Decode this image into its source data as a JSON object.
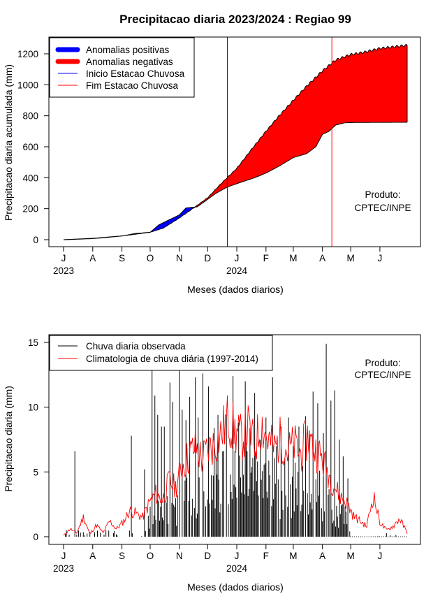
{
  "title": "Precipitacao diaria 2023/2024 : Regiao 99",
  "months": [
    "J",
    "A",
    "S",
    "O",
    "N",
    "D",
    "J",
    "F",
    "M",
    "A",
    "M",
    "J"
  ],
  "years": [
    "2023",
    "2024"
  ],
  "credit": [
    "Produto:",
    "CPTEC/INPE"
  ],
  "top": {
    "ylabel": "Precipitacao diaria acumulada (mm)",
    "xlabel": "Meses (dados diarios)",
    "legend": [
      "Anomalias positivas",
      "Anomalias negativas",
      "Inicio Estacao Chuvosa",
      "Fim Estacao Chuvosa"
    ],
    "yticks": [
      "0",
      "200",
      "400",
      "600",
      "800",
      "1000",
      "1200"
    ]
  },
  "bottom": {
    "ylabel": "Precipitacao diaria (mm)",
    "xlabel": "Meses (dados diarios)",
    "legend": [
      "Chuva diaria observada",
      "Climatologia de chuva diária (1997-2014)"
    ],
    "yticks": [
      "0",
      "5",
      "10",
      "15"
    ]
  },
  "colors": {
    "positive_anomaly": "#0000ff",
    "negative_anomaly": "#ff0000",
    "season_start": "#0000ff",
    "season_end": "#ff0000",
    "observed": "#000000",
    "climatology": "#ff0000"
  },
  "chart_data": [
    {
      "type": "area",
      "title": "Precipitacao diaria 2023/2024 : Regiao 99",
      "xlabel": "Meses (dados diarios)",
      "ylabel": "Precipitacao diaria acumulada (mm)",
      "x_start": "2023-07-01",
      "x_end": "2024-06-30",
      "ylim": [
        0,
        1250
      ],
      "season_start": "2023-12-22",
      "season_end": "2024-04-11",
      "observed_accumulated": [
        [
          "2023-07-01",
          0
        ],
        [
          "2023-07-15",
          3
        ],
        [
          "2023-08-01",
          7
        ],
        [
          "2023-08-15",
          14
        ],
        [
          "2023-09-01",
          24
        ],
        [
          "2023-09-15",
          40
        ],
        [
          "2023-10-01",
          48
        ],
        [
          "2023-10-10",
          95
        ],
        [
          "2023-10-20",
          125
        ],
        [
          "2023-11-01",
          160
        ],
        [
          "2023-11-08",
          205
        ],
        [
          "2023-11-20",
          212
        ],
        [
          "2023-12-01",
          260
        ],
        [
          "2023-12-10",
          300
        ],
        [
          "2023-12-22",
          340
        ],
        [
          "2024-01-05",
          370
        ],
        [
          "2024-01-20",
          400
        ],
        [
          "2024-02-01",
          430
        ],
        [
          "2024-02-15",
          475
        ],
        [
          "2024-03-01",
          530
        ],
        [
          "2024-03-15",
          555
        ],
        [
          "2024-03-25",
          600
        ],
        [
          "2024-04-01",
          680
        ],
        [
          "2024-04-08",
          700
        ],
        [
          "2024-04-15",
          740
        ],
        [
          "2024-04-25",
          755
        ],
        [
          "2024-05-10",
          757
        ],
        [
          "2024-06-30",
          758
        ]
      ],
      "climatology_accumulated": [
        [
          "2023-07-01",
          0
        ],
        [
          "2023-07-15",
          4
        ],
        [
          "2023-08-01",
          9
        ],
        [
          "2023-08-15",
          16
        ],
        [
          "2023-09-01",
          24
        ],
        [
          "2023-09-15",
          35
        ],
        [
          "2023-10-01",
          48
        ],
        [
          "2023-10-15",
          75
        ],
        [
          "2023-11-01",
          140
        ],
        [
          "2023-11-15",
          200
        ],
        [
          "2023-12-01",
          270
        ],
        [
          "2023-12-15",
          360
        ],
        [
          "2024-01-01",
          460
        ],
        [
          "2024-01-15",
          570
        ],
        [
          "2024-02-01",
          700
        ],
        [
          "2024-02-15",
          800
        ],
        [
          "2024-03-01",
          900
        ],
        [
          "2024-03-15",
          990
        ],
        [
          "2024-04-01",
          1090
        ],
        [
          "2024-04-15",
          1160
        ],
        [
          "2024-05-01",
          1195
        ],
        [
          "2024-05-15",
          1210
        ],
        [
          "2024-06-01",
          1235
        ],
        [
          "2024-06-30",
          1255
        ]
      ],
      "series": [
        {
          "name": "Anomalias positivas",
          "color": "#0000ff"
        },
        {
          "name": "Anomalias negativas",
          "color": "#ff0000"
        },
        {
          "name": "Inicio Estacao Chuvosa",
          "color": "#0000ff"
        },
        {
          "name": "Fim Estacao Chuvosa",
          "color": "#ff0000"
        }
      ]
    },
    {
      "type": "bar",
      "title": "",
      "xlabel": "Meses (dados diarios)",
      "ylabel": "Precipitacao diaria (mm)",
      "x_start": "2023-07-01",
      "x_end": "2024-06-30",
      "ylim": [
        0,
        15.5
      ],
      "observed_daily_peaks": [
        [
          "2023-07-13",
          6.6
        ],
        [
          "2023-09-11",
          7.8
        ],
        [
          "2023-09-25",
          5.2
        ],
        [
          "2023-10-03",
          12.9
        ],
        [
          "2023-10-06",
          10.9
        ],
        [
          "2023-10-09",
          9.4
        ],
        [
          "2023-10-13",
          8.5
        ],
        [
          "2023-10-16",
          8.5
        ],
        [
          "2023-10-22",
          11.9
        ],
        [
          "2023-10-25",
          10.4
        ],
        [
          "2023-11-01",
          12.8
        ],
        [
          "2023-11-04",
          9.8
        ],
        [
          "2023-11-08",
          9.0
        ],
        [
          "2023-11-12",
          10.8
        ],
        [
          "2023-11-18",
          12.3
        ],
        [
          "2023-11-21",
          9.2
        ],
        [
          "2023-11-26",
          12.6
        ],
        [
          "2023-12-02",
          11.6
        ],
        [
          "2023-12-08",
          8.4
        ],
        [
          "2023-12-12",
          9.4
        ],
        [
          "2023-12-17",
          6.6
        ],
        [
          "2023-12-21",
          9.4
        ],
        [
          "2023-12-28",
          12.4
        ],
        [
          "2024-01-03",
          8.8
        ],
        [
          "2024-01-10",
          12.0
        ],
        [
          "2024-01-15",
          8.4
        ],
        [
          "2024-01-20",
          11.1
        ],
        [
          "2024-02-01",
          9.2
        ],
        [
          "2024-02-08",
          12.3
        ],
        [
          "2024-02-12",
          7.0
        ],
        [
          "2024-02-17",
          8.5
        ],
        [
          "2024-02-25",
          9.2
        ],
        [
          "2024-03-01",
          7.0
        ],
        [
          "2024-03-07",
          8.5
        ],
        [
          "2024-03-14",
          9.3
        ],
        [
          "2024-03-18",
          8.2
        ],
        [
          "2024-03-22",
          11.2
        ],
        [
          "2024-03-27",
          10.3
        ],
        [
          "2024-04-02",
          8.0
        ],
        [
          "2024-04-05",
          14.9
        ],
        [
          "2024-04-10",
          10.5
        ],
        [
          "2024-04-14",
          11.3
        ],
        [
          "2024-04-19",
          7.5
        ],
        [
          "2024-04-23",
          6.2
        ],
        [
          "2024-04-28",
          4.5
        ]
      ],
      "climatology_daily": [
        [
          "2023-07-01",
          0.1
        ],
        [
          "2023-07-08",
          0.6
        ],
        [
          "2023-07-15",
          0.3
        ],
        [
          "2023-07-22",
          1.5
        ],
        [
          "2023-07-29",
          0.2
        ],
        [
          "2023-08-05",
          0.9
        ],
        [
          "2023-08-12",
          0.3
        ],
        [
          "2023-08-19",
          1.2
        ],
        [
          "2023-08-26",
          0.6
        ],
        [
          "2023-09-02",
          1.1
        ],
        [
          "2023-09-09",
          2.0
        ],
        [
          "2023-09-16",
          1.8
        ],
        [
          "2023-09-23",
          1.5
        ],
        [
          "2023-09-30",
          2.6
        ],
        [
          "2023-10-07",
          3.3
        ],
        [
          "2023-10-14",
          2.8
        ],
        [
          "2023-10-21",
          4.3
        ],
        [
          "2023-10-28",
          3.8
        ],
        [
          "2023-11-04",
          5.5
        ],
        [
          "2023-11-11",
          6.2
        ],
        [
          "2023-11-18",
          7.0
        ],
        [
          "2023-11-25",
          6.0
        ],
        [
          "2023-12-02",
          6.8
        ],
        [
          "2023-12-09",
          7.2
        ],
        [
          "2023-12-16",
          8.0
        ],
        [
          "2023-12-23",
          9.2
        ],
        [
          "2023-12-30",
          8.1
        ],
        [
          "2024-01-06",
          7.6
        ],
        [
          "2024-01-13",
          8.4
        ],
        [
          "2024-01-20",
          7.0
        ],
        [
          "2024-01-27",
          8.8
        ],
        [
          "2024-02-03",
          7.5
        ],
        [
          "2024-02-10",
          6.8
        ],
        [
          "2024-02-17",
          7.6
        ],
        [
          "2024-02-24",
          6.6
        ],
        [
          "2024-03-02",
          7.1
        ],
        [
          "2024-03-09",
          6.4
        ],
        [
          "2024-03-16",
          7.7
        ],
        [
          "2024-03-23",
          6.8
        ],
        [
          "2024-03-30",
          6.2
        ],
        [
          "2024-04-06",
          5.1
        ],
        [
          "2024-04-13",
          4.0
        ],
        [
          "2024-04-20",
          3.1
        ],
        [
          "2024-04-27",
          2.6
        ],
        [
          "2024-05-04",
          1.6
        ],
        [
          "2024-05-11",
          1.2
        ],
        [
          "2024-05-18",
          0.8
        ],
        [
          "2024-05-25",
          3.2
        ],
        [
          "2024-06-01",
          1.1
        ],
        [
          "2024-06-08",
          0.5
        ],
        [
          "2024-06-15",
          0.8
        ],
        [
          "2024-06-22",
          1.4
        ],
        [
          "2024-06-30",
          0.3
        ]
      ],
      "series": [
        {
          "name": "Chuva diaria observada",
          "color": "#000000"
        },
        {
          "name": "Climatologia de chuva diária (1997-2014)",
          "color": "#ff0000"
        }
      ]
    }
  ]
}
